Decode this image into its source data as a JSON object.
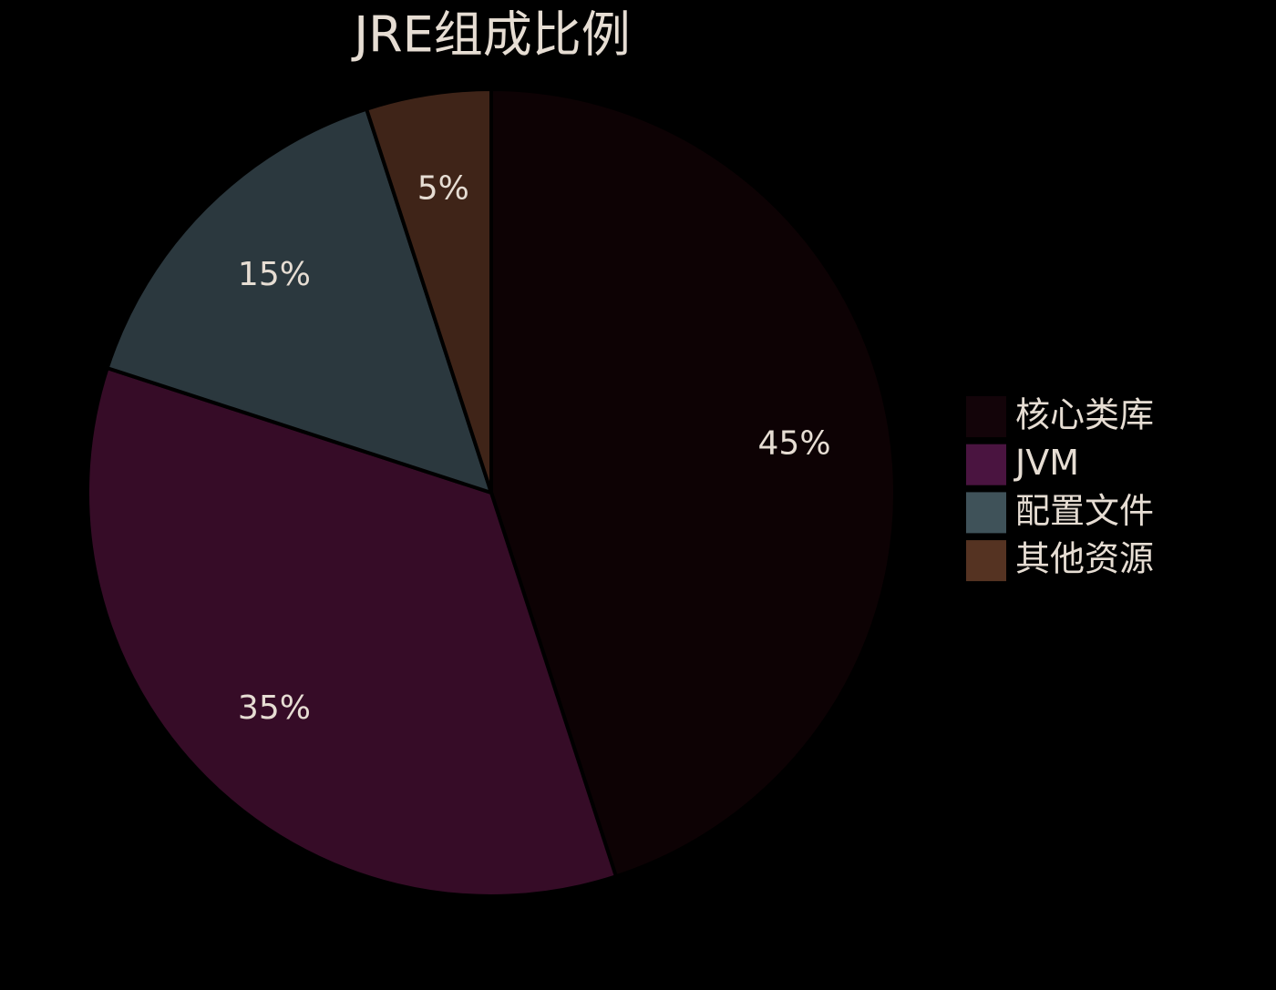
{
  "chart_data": {
    "type": "pie",
    "title": "JRE组成比例",
    "categories": [
      "核心类库",
      "JVM",
      "配置文件",
      "其他资源"
    ],
    "values": [
      45,
      35,
      15,
      5
    ],
    "value_labels": [
      "45%",
      "35%",
      "15%",
      "5%"
    ],
    "colors": [
      "#0d0204",
      "#360c27",
      "#2b383e",
      "#3f2418"
    ],
    "legend_colors": [
      "#130409",
      "#4a1440",
      "#3f5259",
      "#553322"
    ],
    "legend": "right"
  }
}
